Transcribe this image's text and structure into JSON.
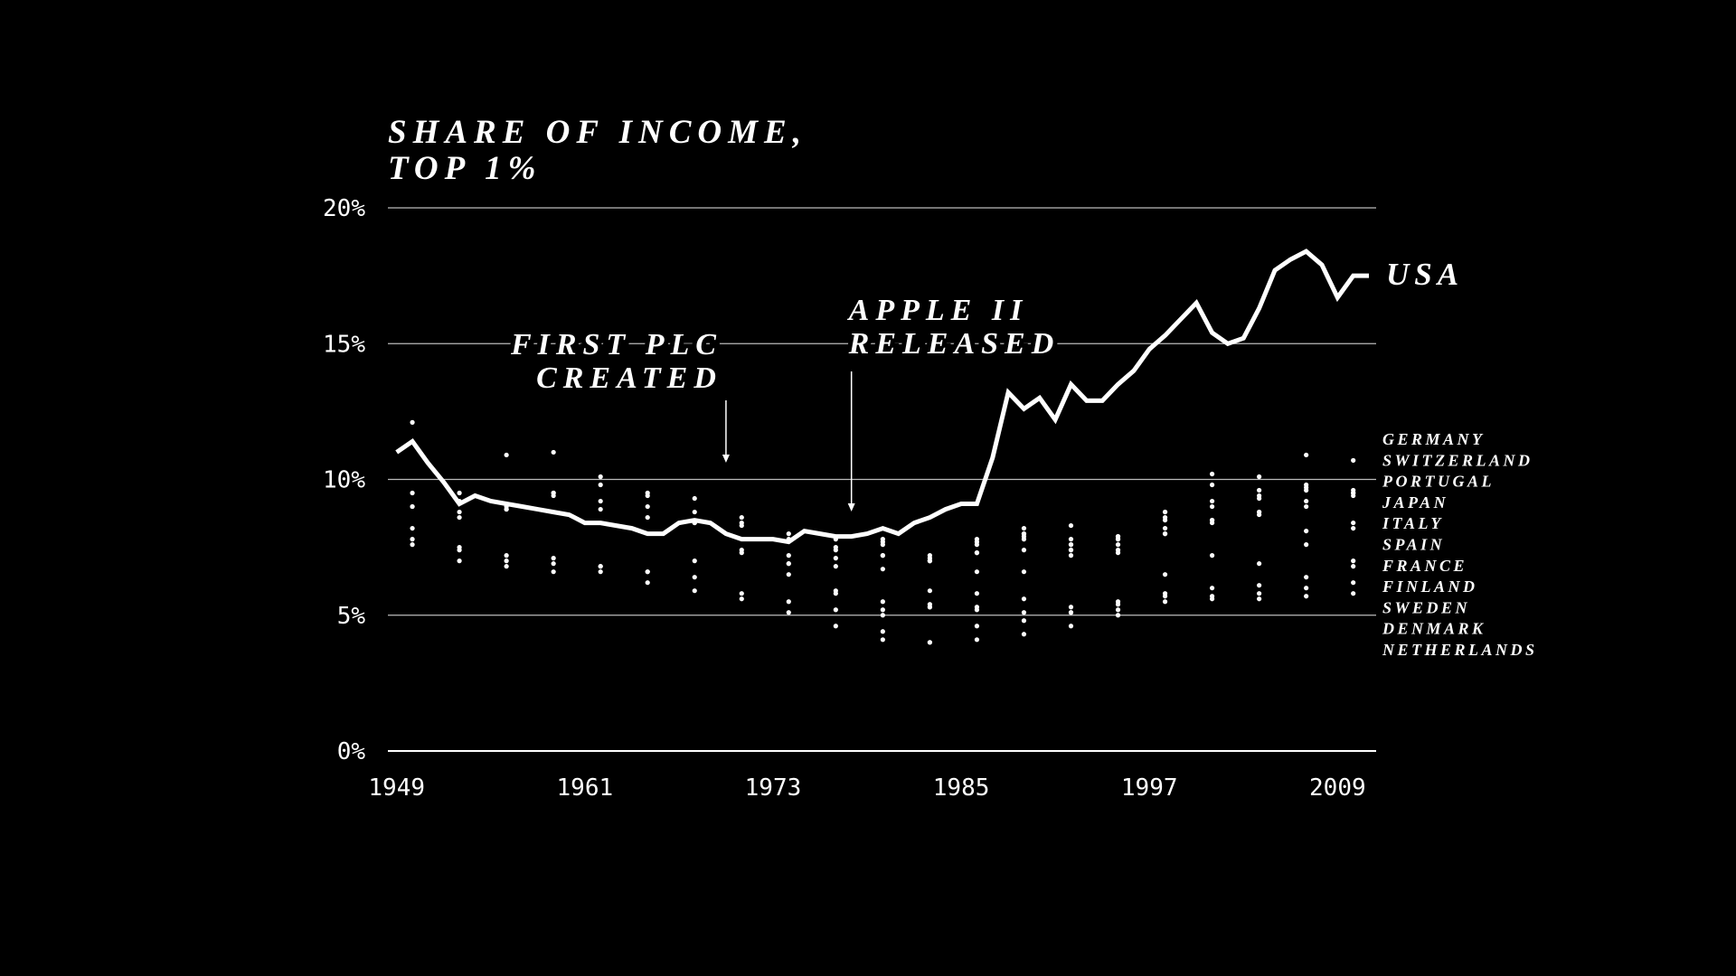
{
  "chart_data": {
    "type": "line",
    "title": [
      "SHARE OF INCOME,",
      "TOP 1%"
    ],
    "x": [
      1949,
      1950,
      1951,
      1952,
      1953,
      1954,
      1955,
      1956,
      1957,
      1958,
      1959,
      1960,
      1961,
      1962,
      1963,
      1964,
      1965,
      1966,
      1967,
      1968,
      1969,
      1970,
      1971,
      1972,
      1973,
      1974,
      1975,
      1976,
      1977,
      1978,
      1979,
      1980,
      1981,
      1982,
      1983,
      1984,
      1985,
      1986,
      1987,
      1988,
      1989,
      1990,
      1991,
      1992,
      1993,
      1994,
      1995,
      1996,
      1997,
      1998,
      1999,
      2000,
      2001,
      2002,
      2003,
      2004,
      2005,
      2006,
      2007,
      2008,
      2009,
      2010,
      2011
    ],
    "dot_x": [
      1950,
      1953,
      1956,
      1959,
      1962,
      1965,
      1968,
      1971,
      1974,
      1977,
      1980,
      1983,
      1986,
      1989,
      1992,
      1995,
      1998,
      2001,
      2004,
      2007,
      2010
    ],
    "series": [
      {
        "name": "USA",
        "type": "line",
        "color": "#ffffff",
        "values": [
          11.0,
          11.4,
          10.6,
          9.9,
          9.1,
          9.4,
          9.2,
          9.1,
          9.0,
          8.9,
          8.8,
          8.7,
          8.4,
          8.4,
          8.3,
          8.2,
          8.0,
          8.0,
          8.4,
          8.5,
          8.4,
          8.0,
          7.8,
          7.8,
          7.8,
          7.7,
          8.1,
          8.0,
          7.9,
          7.9,
          8.0,
          8.2,
          8.0,
          8.4,
          8.6,
          8.9,
          9.1,
          9.1,
          10.8,
          13.2,
          12.6,
          13.0,
          12.2,
          13.5,
          12.9,
          12.9,
          13.5,
          14.0,
          14.8,
          15.3,
          15.9,
          16.5,
          15.4,
          15.0,
          15.2,
          16.3,
          17.7,
          18.1,
          18.4,
          17.9,
          16.7,
          17.5,
          17.5
        ]
      },
      {
        "name": "GERMANY",
        "type": "scatter",
        "color": "#ffffff",
        "values": [
          9.5,
          9.2,
          9.0,
          11.0,
          10.1,
          9.5,
          9.3,
          8.6,
          7.2,
          7.5,
          7.8,
          7.2,
          7.6,
          8.0,
          8.3,
          7.9,
          8.8,
          10.2,
          10.1,
          10.9,
          10.7
        ]
      },
      {
        "name": "SWITZERLAND",
        "type": "scatter",
        "color": "#ffffff",
        "values": [
          9.0,
          8.8,
          8.9,
          9.5,
          9.8,
          9.4,
          8.8,
          8.4,
          8.0,
          7.4,
          7.7,
          7.0,
          7.7,
          8.2,
          7.8,
          7.9,
          8.8,
          9.8,
          9.6,
          9.8,
          9.5
        ]
      },
      {
        "name": "PORTUGAL",
        "type": "scatter",
        "color": "#ffffff",
        "values": [
          null,
          null,
          null,
          null,
          null,
          null,
          null,
          null,
          null,
          7.8,
          6.7,
          5.9,
          5.8,
          6.6,
          7.2,
          7.4,
          8.5,
          9.2,
          9.4,
          9.7,
          9.6
        ]
      },
      {
        "name": "JAPAN",
        "type": "scatter",
        "color": "#ffffff",
        "values": [
          7.8,
          7.5,
          7.2,
          7.1,
          6.8,
          6.6,
          7.0,
          7.3,
          6.9,
          6.8,
          7.2,
          7.0,
          7.3,
          7.9,
          7.4,
          7.3,
          8.0,
          8.5,
          8.8,
          9.2,
          9.5
        ]
      },
      {
        "name": "ITALY",
        "type": "scatter",
        "color": "#ffffff",
        "values": [
          null,
          null,
          null,
          null,
          null,
          null,
          null,
          null,
          6.9,
          5.8,
          5.2,
          5.4,
          6.6,
          7.4,
          7.6,
          7.8,
          8.6,
          9.0,
          9.3,
          9.6,
          9.4
        ]
      },
      {
        "name": "SPAIN",
        "type": "scatter",
        "color": "#ffffff",
        "values": [
          null,
          null,
          null,
          null,
          null,
          null,
          null,
          null,
          null,
          null,
          7.2,
          7.1,
          7.8,
          8.0,
          7.6,
          7.8,
          8.2,
          8.5,
          8.8,
          8.1,
          8.2
        ]
      },
      {
        "name": "FRANCE",
        "type": "scatter",
        "color": "#ffffff",
        "values": [
          9.0,
          8.6,
          8.9,
          9.4,
          8.9,
          8.6,
          8.4,
          8.3,
          7.8,
          7.1,
          7.6,
          7.0,
          7.3,
          7.8,
          7.4,
          7.6,
          8.0,
          8.4,
          8.7,
          9.0,
          8.4
        ]
      },
      {
        "name": "FINLAND",
        "type": "scatter",
        "color": "#ffffff",
        "values": [
          null,
          null,
          null,
          null,
          null,
          null,
          null,
          null,
          null,
          null,
          4.4,
          4.0,
          4.6,
          4.8,
          5.1,
          5.2,
          6.5,
          7.2,
          6.9,
          7.6,
          7.0
        ]
      },
      {
        "name": "SWEDEN",
        "type": "scatter",
        "color": "#ffffff",
        "values": [
          7.6,
          7.0,
          6.8,
          6.6,
          6.6,
          6.2,
          5.9,
          5.6,
          5.1,
          4.6,
          4.1,
          4.0,
          4.1,
          4.3,
          4.6,
          5.0,
          5.7,
          6.0,
          6.1,
          6.4,
          6.8
        ]
      },
      {
        "name": "DENMARK",
        "type": "scatter",
        "color": "#ffffff",
        "values": [
          8.2,
          7.4,
          7.0,
          6.9,
          6.8,
          6.6,
          6.4,
          5.8,
          5.5,
          5.2,
          5.0,
          5.3,
          5.2,
          5.1,
          5.3,
          5.4,
          5.8,
          5.6,
          5.8,
          6.0,
          6.2
        ]
      },
      {
        "name": "NETHERLANDS",
        "type": "scatter",
        "color": "#ffffff",
        "values": [
          12.1,
          9.5,
          10.9,
          9.5,
          9.2,
          9.0,
          8.4,
          7.4,
          6.5,
          5.9,
          5.5,
          5.3,
          5.3,
          5.6,
          5.1,
          5.5,
          5.5,
          5.7,
          5.6,
          5.7,
          5.8
        ]
      }
    ],
    "annotations": [
      {
        "text": [
          "FIRST PLC",
          "CREATED"
        ],
        "x": 1970
      },
      {
        "text": [
          "APPLE II",
          "RELEASED"
        ],
        "x": 1978
      }
    ],
    "xlim": [
      1948.44,
      2011.46
    ],
    "xticks": [
      1949,
      1961,
      1973,
      1985,
      1997,
      2009
    ],
    "ylim": [
      0,
      20
    ],
    "yticks": [
      {
        "value": 0,
        "label": "0%"
      },
      {
        "value": 5,
        "label": "5%"
      },
      {
        "value": 10,
        "label": "10%"
      },
      {
        "value": 15,
        "label": "15%"
      },
      {
        "value": 20,
        "label": "20%"
      }
    ],
    "grid": true
  }
}
